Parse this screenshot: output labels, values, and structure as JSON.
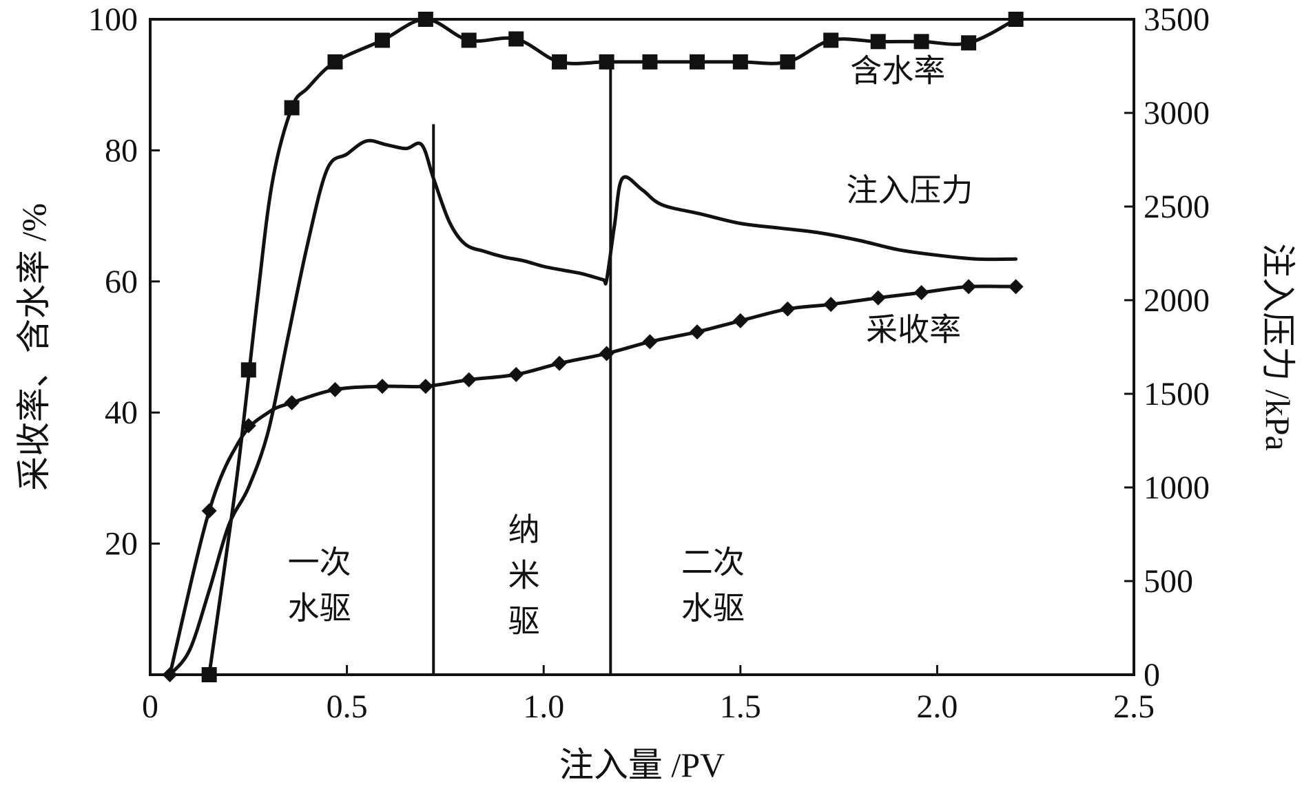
{
  "chart_data": {
    "type": "line",
    "title": "",
    "xlabel": "注入量 /PV",
    "ylabel_left": "采收率、含水率 /%",
    "ylabel_right": "注入压力 /kPa",
    "xlim": [
      0,
      2.5
    ],
    "ylim_left": [
      0,
      100
    ],
    "ylim_right": [
      0,
      3500
    ],
    "x_ticks": [
      0,
      0.5,
      1.0,
      1.5,
      2.0,
      2.5
    ],
    "x_tick_labels": [
      "0",
      "0.5",
      "1.0",
      "1.5",
      "2.0",
      "2.5"
    ],
    "y_left_ticks": [
      20,
      40,
      60,
      80,
      100
    ],
    "y_left_tick_labels": [
      "20",
      "40",
      "60",
      "80",
      "100"
    ],
    "y_right_ticks": [
      0,
      500,
      1000,
      1500,
      2000,
      2500,
      3000,
      3500
    ],
    "y_right_tick_labels": [
      "0",
      "500",
      "1000",
      "1500",
      "2000",
      "2500",
      "3000",
      "3500"
    ],
    "grid": false,
    "phase_boundaries": [
      0.72,
      1.17
    ],
    "phase_labels": [
      {
        "lines": [
          "一次",
          "水驱"
        ],
        "x": 0.43,
        "y": [
          15.5,
          8.5
        ]
      },
      {
        "lines": [
          "纳",
          "米",
          "驱"
        ],
        "x": 0.95,
        "y": [
          20.5,
          13.5,
          6.5
        ]
      },
      {
        "lines": [
          "二次",
          "水驱"
        ],
        "x": 1.43,
        "y": [
          15.5,
          8.5
        ]
      }
    ],
    "series": [
      {
        "name": "含水率",
        "axis": "left",
        "marker": "square",
        "label_pos": {
          "x": 1.9,
          "y": 90.5
        },
        "smooth_points": [
          [
            0.15,
            0
          ],
          [
            0.22,
            30
          ],
          [
            0.27,
            56
          ],
          [
            0.31,
            75
          ],
          [
            0.36,
            86.5
          ],
          [
            0.4,
            89.5
          ],
          [
            0.47,
            93.5
          ],
          [
            0.59,
            96.8
          ],
          [
            0.7,
            100
          ],
          [
            0.81,
            96.8
          ],
          [
            0.93,
            97
          ],
          [
            1.04,
            93.5
          ],
          [
            1.16,
            93.5
          ],
          [
            1.27,
            93.5
          ],
          [
            1.39,
            93.5
          ],
          [
            1.5,
            93.5
          ],
          [
            1.62,
            93.5
          ],
          [
            1.73,
            96.8
          ],
          [
            1.85,
            96.6
          ],
          [
            1.96,
            96.6
          ],
          [
            2.08,
            96.4
          ],
          [
            2.2,
            100
          ]
        ],
        "markers": [
          [
            0.15,
            0
          ],
          [
            0.25,
            46.5
          ],
          [
            0.36,
            86.5
          ],
          [
            0.47,
            93.5
          ],
          [
            0.59,
            96.8
          ],
          [
            0.7,
            100
          ],
          [
            0.81,
            96.8
          ],
          [
            0.93,
            97
          ],
          [
            1.04,
            93.5
          ],
          [
            1.16,
            93.5
          ],
          [
            1.27,
            93.5
          ],
          [
            1.39,
            93.5
          ],
          [
            1.5,
            93.5
          ],
          [
            1.62,
            93.5
          ],
          [
            1.73,
            96.8
          ],
          [
            1.85,
            96.6
          ],
          [
            1.96,
            96.6
          ],
          [
            2.08,
            96.4
          ],
          [
            2.2,
            100
          ]
        ]
      },
      {
        "name": "注入压力",
        "axis": "right",
        "marker": "none",
        "label_pos": {
          "x": 1.93,
          "y": 2530
        },
        "smooth_points": [
          [
            0.05,
            0
          ],
          [
            0.1,
            130
          ],
          [
            0.15,
            450
          ],
          [
            0.2,
            800
          ],
          [
            0.25,
            1000
          ],
          [
            0.3,
            1300
          ],
          [
            0.35,
            1800
          ],
          [
            0.4,
            2300
          ],
          [
            0.45,
            2700
          ],
          [
            0.5,
            2780
          ],
          [
            0.55,
            2850
          ],
          [
            0.6,
            2830
          ],
          [
            0.65,
            2810
          ],
          [
            0.69,
            2830
          ],
          [
            0.72,
            2650
          ],
          [
            0.76,
            2420
          ],
          [
            0.8,
            2300
          ],
          [
            0.85,
            2260
          ],
          [
            0.9,
            2230
          ],
          [
            0.95,
            2210
          ],
          [
            1.0,
            2180
          ],
          [
            1.05,
            2160
          ],
          [
            1.1,
            2140
          ],
          [
            1.15,
            2110
          ],
          [
            1.16,
            2110
          ],
          [
            1.18,
            2400
          ],
          [
            1.2,
            2650
          ],
          [
            1.25,
            2590
          ],
          [
            1.3,
            2510
          ],
          [
            1.4,
            2460
          ],
          [
            1.5,
            2410
          ],
          [
            1.6,
            2385
          ],
          [
            1.7,
            2360
          ],
          [
            1.8,
            2320
          ],
          [
            1.9,
            2270
          ],
          [
            2.0,
            2240
          ],
          [
            2.1,
            2220
          ],
          [
            2.2,
            2220
          ]
        ],
        "markers": []
      },
      {
        "name": "采收率",
        "axis": "left",
        "marker": "diamond",
        "label_pos": {
          "x": 1.94,
          "y": 51
        },
        "smooth_points": [
          [
            0.05,
            0
          ],
          [
            0.15,
            25
          ],
          [
            0.23,
            36
          ],
          [
            0.3,
            40
          ],
          [
            0.36,
            41.5
          ],
          [
            0.47,
            43.5
          ],
          [
            0.59,
            44
          ],
          [
            0.7,
            44
          ],
          [
            0.81,
            45
          ],
          [
            0.93,
            45.8
          ],
          [
            1.04,
            47.5
          ],
          [
            1.16,
            49
          ],
          [
            1.27,
            50.8
          ],
          [
            1.39,
            52.3
          ],
          [
            1.5,
            54
          ],
          [
            1.62,
            55.8
          ],
          [
            1.73,
            56.5
          ],
          [
            1.85,
            57.5
          ],
          [
            1.96,
            58.3
          ],
          [
            2.08,
            59.2
          ],
          [
            2.2,
            59.2
          ]
        ],
        "markers": [
          [
            0.05,
            0
          ],
          [
            0.15,
            25
          ],
          [
            0.25,
            38
          ],
          [
            0.36,
            41.5
          ],
          [
            0.47,
            43.5
          ],
          [
            0.59,
            44
          ],
          [
            0.7,
            44
          ],
          [
            0.81,
            45
          ],
          [
            0.93,
            45.8
          ],
          [
            1.04,
            47.5
          ],
          [
            1.16,
            49
          ],
          [
            1.27,
            50.8
          ],
          [
            1.39,
            52.3
          ],
          [
            1.5,
            54
          ],
          [
            1.62,
            55.8
          ],
          [
            1.73,
            56.5
          ],
          [
            1.85,
            57.5
          ],
          [
            1.96,
            58.3
          ],
          [
            2.08,
            59.2
          ],
          [
            2.2,
            59.2
          ]
        ]
      }
    ]
  }
}
